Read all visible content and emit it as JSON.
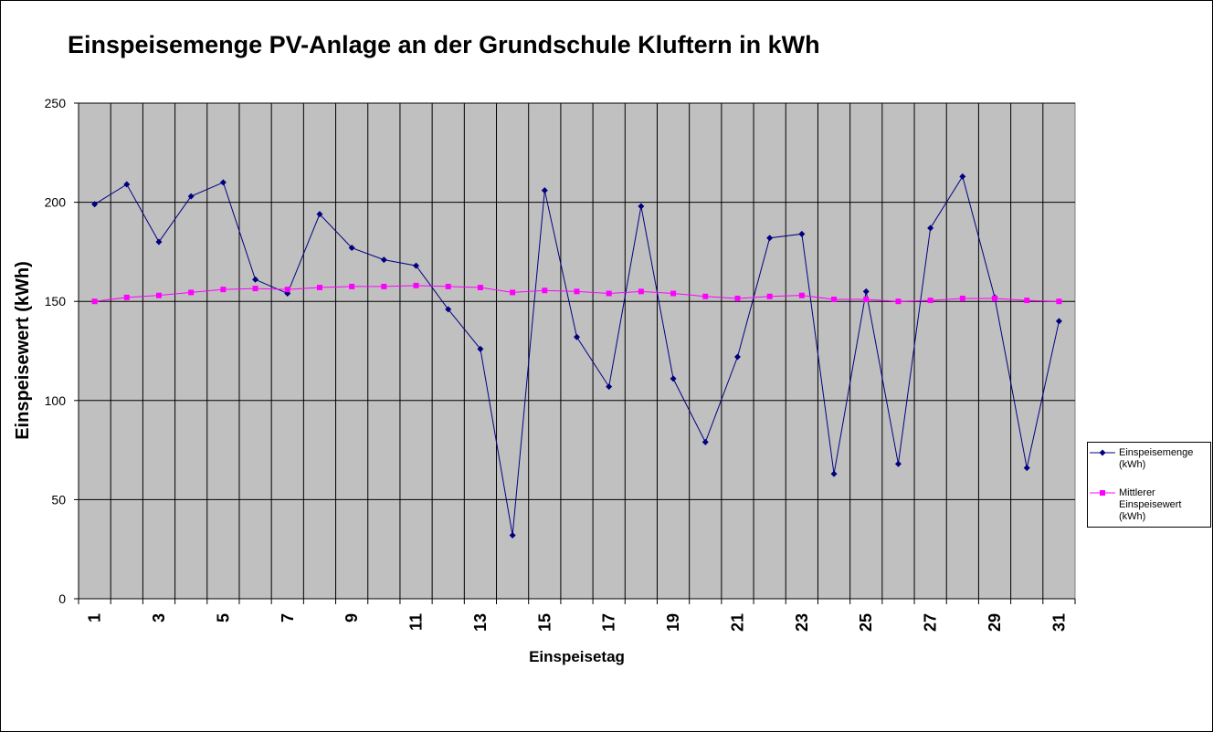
{
  "chart_data": {
    "type": "line",
    "title": "Einspeisemenge PV-Anlage an der Grundschule Kluftern in kWh",
    "xlabel": "Einspeisetag",
    "ylabel": "Einspeisewert (kWh)",
    "ylim": [
      0,
      250
    ],
    "yticks": [
      "0",
      "50",
      "100",
      "150",
      "200",
      "250"
    ],
    "x": [
      1,
      2,
      3,
      4,
      5,
      6,
      7,
      8,
      9,
      10,
      11,
      12,
      13,
      14,
      15,
      16,
      17,
      18,
      19,
      20,
      21,
      22,
      23,
      24,
      25,
      26,
      27,
      28,
      29,
      30,
      31
    ],
    "xtick_labels": [
      "1",
      "3",
      "5",
      "7",
      "9",
      "11",
      "13",
      "15",
      "17",
      "19",
      "21",
      "23",
      "25",
      "27",
      "29",
      "31"
    ],
    "grid": true,
    "legend_position": "right",
    "plot_background": "#c0c0c0",
    "series": [
      {
        "name": "Einspeisemenge (kWh)",
        "color": "#000080",
        "marker": "diamond",
        "values": [
          199,
          209,
          180,
          203,
          210,
          161,
          154,
          194,
          177,
          171,
          168,
          146,
          126,
          32,
          206,
          132,
          107,
          198,
          111,
          79,
          122,
          182,
          184,
          63,
          155,
          68,
          187,
          213,
          152,
          66,
          140
        ]
      },
      {
        "name": "Mittlerer Einspeisewert (kWh)",
        "color": "#ff00ff",
        "marker": "square",
        "values": [
          150,
          152,
          153,
          154.5,
          156,
          156.5,
          156,
          157,
          157.5,
          157.5,
          158,
          157.5,
          157,
          154.5,
          155.5,
          155,
          154,
          155,
          154,
          152.5,
          151.5,
          152.5,
          153,
          151,
          151,
          150,
          150.5,
          151.5,
          151.5,
          150.5,
          150
        ]
      }
    ]
  }
}
